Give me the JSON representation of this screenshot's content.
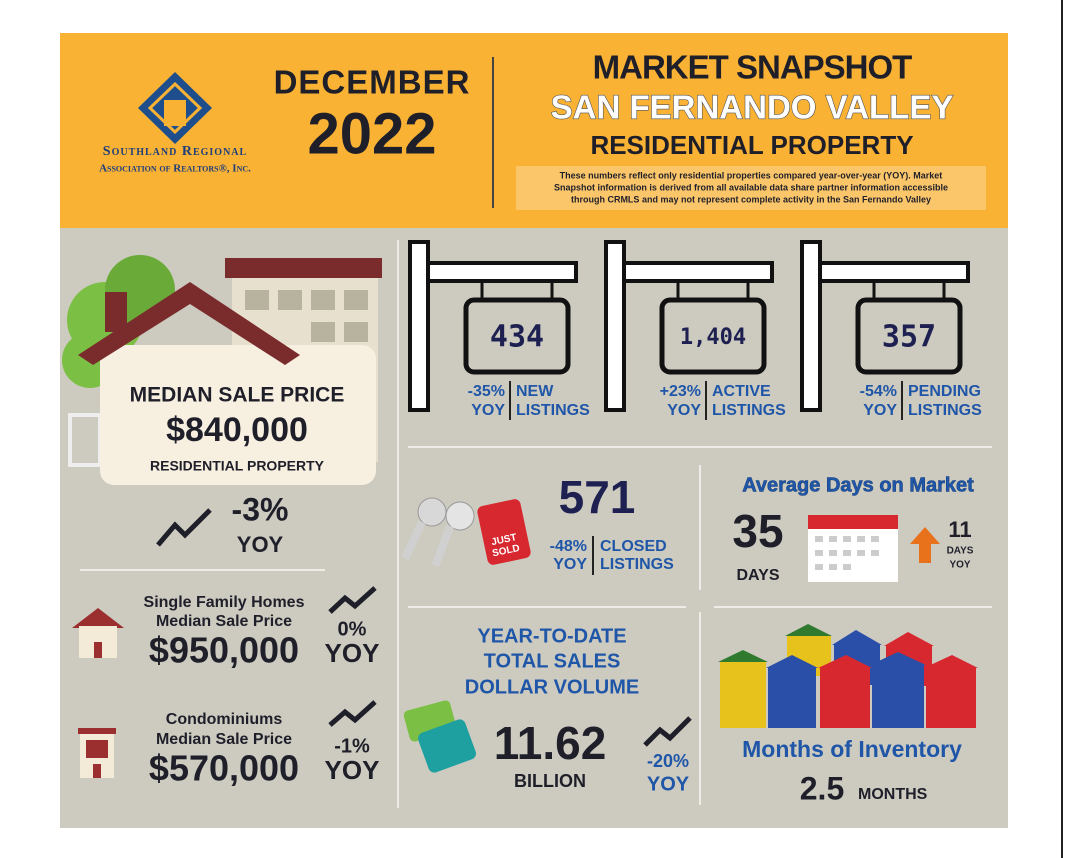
{
  "header": {
    "logo_line1": "Southland Regional",
    "logo_line2": "Association of Realtors®, Inc.",
    "month": "DECEMBER",
    "year": "2022",
    "title": "MARKET SNAPSHOT",
    "region": "SAN FERNANDO VALLEY",
    "subtitle": "RESIDENTIAL PROPERTY",
    "note": [
      "These numbers reflect only residential properties compared year-over-year (YOY). Market",
      "Snapshot information is derived from all available data share partner information accessible",
      "through CRMLS and may not represent complete activity in the San Fernando Valley"
    ]
  },
  "median": {
    "label": "MEDIAN SALE PRICE",
    "value": "$840,000",
    "sub": "RESIDENTIAL PROPERTY",
    "change": "-3%",
    "yoy": "YOY"
  },
  "single_family": {
    "line1": "Single Family Homes",
    "line2": "Median Sale Price",
    "value": "$950,000",
    "change": "0%",
    "yoy": "YOY"
  },
  "condos": {
    "line1": "Condominiums",
    "line2": "Median Sale Price",
    "value": "$570,000",
    "change": "-1%",
    "yoy": "YOY"
  },
  "listings": [
    {
      "value": "434",
      "change": "-35%",
      "yoy": "YOY",
      "label1": "NEW",
      "label2": "LISTINGS"
    },
    {
      "value": "1,404",
      "change": "+23%",
      "yoy": "YOY",
      "label1": "ACTIVE",
      "label2": "LISTINGS"
    },
    {
      "value": "357",
      "change": "-54%",
      "yoy": "YOY",
      "label1": "PENDING",
      "label2": "LISTINGS"
    }
  ],
  "closed": {
    "tag1": "JUST",
    "tag2": "SOLD",
    "value": "571",
    "change": "-48%",
    "yoy": "YOY",
    "label1": "CLOSED",
    "label2": "LISTINGS"
  },
  "days": {
    "title": "Average Days on Market",
    "value": "35",
    "unit": "DAYS",
    "change": "11",
    "change_unit": "DAYS",
    "yoy": "YOY"
  },
  "ytd": {
    "lines": [
      "YEAR-TO-DATE",
      "TOTAL SALES",
      "DOLLAR VOLUME"
    ],
    "value": "11.62",
    "unit": "BILLION",
    "change": "-20%",
    "yoy": "YOY"
  },
  "inventory": {
    "title": "Months of Inventory",
    "value": "2.5",
    "unit": "MONTHS"
  }
}
